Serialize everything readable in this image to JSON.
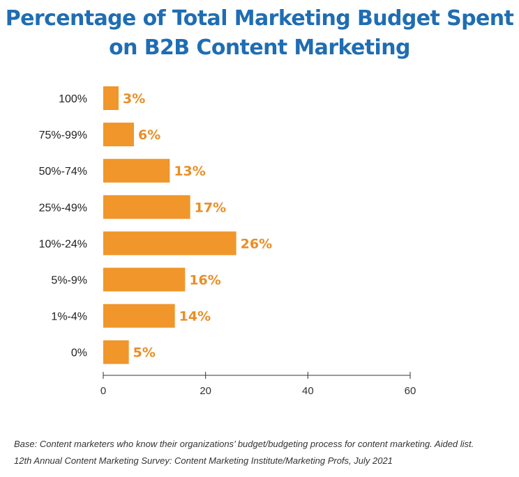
{
  "chart_data": {
    "type": "bar",
    "orientation": "horizontal",
    "title_lines": [
      "Percentage of Total Marketing Budget Spent",
      "on B2B Content Marketing"
    ],
    "categories": [
      "100%",
      "75%-99%",
      "50%-74%",
      "25%-49%",
      "10%-24%",
      "5%-9%",
      "1%-4%",
      "0%"
    ],
    "values": [
      3,
      6,
      13,
      17,
      26,
      16,
      14,
      5
    ],
    "value_labels": [
      "3%",
      "6%",
      "13%",
      "17%",
      "26%",
      "16%",
      "14%",
      "5%"
    ],
    "xlim": [
      0,
      60
    ],
    "xticks": [
      0,
      20,
      40,
      60
    ],
    "xtick_labels": [
      "0",
      "20",
      "40",
      "60"
    ],
    "grid": false,
    "colors": {
      "bar": "#f0962a",
      "value_label": "#e98e26",
      "title": "#1f6db3",
      "axis": "#333333"
    }
  },
  "footnotes": [
    "Base: Content marketers who know their organizations’ budget/budgeting process for content marketing. Aided list.",
    "12th Annual Content Marketing Survey: Content Marketing Institute/Marketing Profs, July 2021"
  ]
}
